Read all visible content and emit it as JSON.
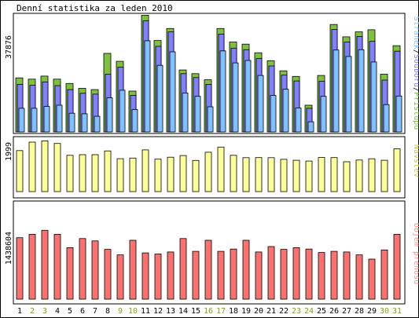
{
  "chart_data": {
    "type": "bar",
    "title": "Denní statistika za leden 2010",
    "categories": [
      "1",
      "2",
      "3",
      "4",
      "5",
      "6",
      "7",
      "8",
      "9",
      "10",
      "11",
      "12",
      "13",
      "14",
      "15",
      "16",
      "17",
      "18",
      "19",
      "20",
      "21",
      "22",
      "23",
      "24",
      "25",
      "26",
      "27",
      "28",
      "29",
      "30",
      "31"
    ],
    "weekend_days": [
      "2",
      "3",
      "9",
      "10",
      "16",
      "17",
      "23",
      "24",
      "30",
      "31"
    ],
    "colors": {
      "pristupu": "#80c040",
      "souboru": "#8080ff",
      "stranek": "#80c0ff",
      "navstevy": "#ffff99",
      "objem": "#ff7070",
      "weekday_label": "#000000",
      "weekend_label": "#80a020"
    },
    "panels": [
      {
        "id": "traffic",
        "max_label": "37876",
        "ylim": [
          0,
          37876
        ],
        "legend": {
          "stranek": "Stránek",
          "souboru": "Souborů",
          "pristupu": "Přístupů",
          "separator": "/"
        },
        "series": [
          {
            "name": "Přístupů",
            "key": "pristupu",
            "values": [
              17600,
              17200,
              18200,
              17200,
              15800,
              14200,
              13800,
              25600,
              23000,
              13300,
              38000,
              29800,
              33700,
              20200,
              19000,
              17000,
              33700,
              29300,
              28600,
              25800,
              23200,
              19900,
              18100,
              8700,
              18400,
              35000,
              31000,
              32600,
              33300,
              18800,
              28100
            ]
          },
          {
            "name": "Souborů",
            "key": "souboru",
            "values": [
              15500,
              15200,
              16300,
              15100,
              13800,
              12600,
              12300,
              18800,
              21100,
              11900,
              36200,
              27900,
              32600,
              19000,
              17700,
              15500,
              31900,
              27300,
              26800,
              23900,
              21500,
              18500,
              16600,
              7700,
              16500,
              33400,
              29300,
              31100,
              29500,
              16900,
              26300
            ]
          },
          {
            "name": "Stránek",
            "key": "stranek",
            "values": [
              7700,
              7700,
              8300,
              8700,
              6100,
              5900,
              5100,
              11100,
              13600,
              7300,
              29700,
              21700,
              26100,
              12700,
              11600,
              8200,
              26400,
              22500,
              23300,
              18400,
              11900,
              13900,
              7800,
              3300,
              11600,
              26700,
              24600,
              26800,
              22800,
              8900,
              11700
            ]
          }
        ]
      },
      {
        "id": "visits",
        "max_label": "1999",
        "ylim": [
          0,
          1999
        ],
        "legend": "Návštěv",
        "series": [
          {
            "name": "Návštěv",
            "key": "navstevy",
            "values": [
              1655,
              1999,
              2050,
              1945,
              1465,
              1490,
              1490,
              1645,
              1330,
              1355,
              1685,
              1310,
              1390,
              1455,
              1260,
              1590,
              1800,
              1465,
              1370,
              1375,
              1370,
              1305,
              1265,
              1235,
              1380,
              1375,
              1205,
              1275,
              1325,
              1265,
              1725
            ]
          }
        ]
      },
      {
        "id": "volume",
        "max_label": "1438604",
        "ylim": [
          0,
          1438604
        ],
        "legend": "Objem přenosu",
        "series": [
          {
            "name": "Objem přenosu",
            "key": "objem",
            "values": [
              1309000,
              1382000,
              1467000,
              1382000,
              1097000,
              1291000,
              1242000,
              1061000,
              944000,
              1255000,
              986000,
              962000,
              1006000,
              1291000,
              1018000,
              1255000,
              1018000,
              1067000,
              1255000,
              1006000,
              1121000,
              1061000,
              1097000,
              1067000,
              993000,
              1018000,
              1006000,
              944000,
              853000,
              1049000,
              1382000
            ]
          }
        ]
      }
    ]
  }
}
